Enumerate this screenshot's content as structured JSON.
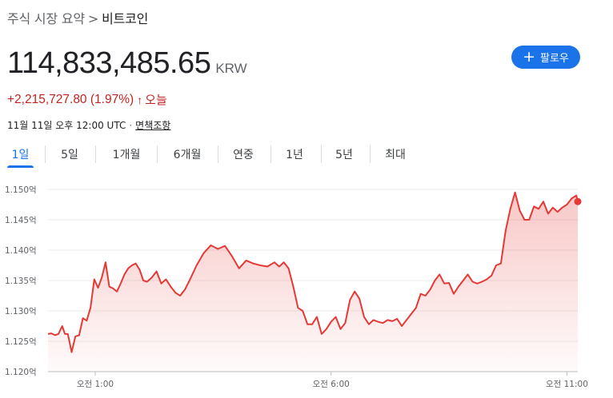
{
  "breadcrumb": {
    "parent": "주식 시장 요약",
    "separator": ">",
    "current": "비트코인"
  },
  "quote": {
    "price": "114,833,485.65",
    "currency": "KRW",
    "change": "+2,215,727.80 (1.97%)",
    "change_arrow": "↑",
    "period": "오늘",
    "timestamp": "11월 11일 오후 12:00 UTC",
    "separator_dot": "·",
    "disclaimer": "면책조항"
  },
  "follow_button": {
    "icon": "plus-icon",
    "label": "팔로우",
    "color": "#1a73e8"
  },
  "tabs": [
    {
      "label": "1일",
      "active": true
    },
    {
      "label": "5일",
      "active": false
    },
    {
      "label": "1개월",
      "active": false
    },
    {
      "label": "6개월",
      "active": false
    },
    {
      "label": "연중",
      "active": false
    },
    {
      "label": "1년",
      "active": false
    },
    {
      "label": "5년",
      "active": false
    },
    {
      "label": "최대",
      "active": false
    }
  ],
  "chart_data": {
    "type": "area",
    "line_color": "#e53935",
    "y_unit": "억 KRW",
    "ylim": [
      1.12,
      1.15
    ],
    "y_ticks": [
      {
        "value": 1.15,
        "label": "1.150억"
      },
      {
        "value": 1.145,
        "label": "1.145억"
      },
      {
        "value": 1.14,
        "label": "1.140억"
      },
      {
        "value": 1.135,
        "label": "1.135억"
      },
      {
        "value": 1.13,
        "label": "1.130억"
      },
      {
        "value": 1.125,
        "label": "1.125억"
      },
      {
        "value": 1.12,
        "label": "1.120억"
      }
    ],
    "xlim": [
      0.0,
      11.23
    ],
    "x_unit": "hours after 12:00 AM UTC",
    "x_ticks": [
      {
        "value": 1.0,
        "label": "오전 1:00"
      },
      {
        "value": 6.0,
        "label": "오전 6:00"
      },
      {
        "value": 11.0,
        "label": "오전 11:00"
      }
    ],
    "grid": true,
    "series": [
      {
        "x": [
          0.0,
          0.07,
          0.15,
          0.22,
          0.3,
          0.36,
          0.42,
          0.5,
          0.58,
          0.66,
          0.74,
          0.82,
          0.9,
          0.98,
          1.06,
          1.14,
          1.22,
          1.3,
          1.38,
          1.46,
          1.54,
          1.62,
          1.7,
          1.78,
          1.86,
          1.94,
          2.02,
          2.1,
          2.2,
          2.3,
          2.4,
          2.5,
          2.6,
          2.7,
          2.8,
          2.9,
          3.0,
          3.15,
          3.3,
          3.45,
          3.6,
          3.75,
          3.9,
          4.05,
          4.2,
          4.35,
          4.5,
          4.65,
          4.8,
          4.9,
          5.0,
          5.1,
          5.2,
          5.3,
          5.4,
          5.5,
          5.6,
          5.7,
          5.8,
          5.9,
          6.0,
          6.1,
          6.2,
          6.3,
          6.4,
          6.5,
          6.6,
          6.7,
          6.8,
          6.9,
          7.0,
          7.1,
          7.2,
          7.3,
          7.4,
          7.5,
          7.6,
          7.7,
          7.8,
          7.9,
          8.0,
          8.1,
          8.2,
          8.3,
          8.4,
          8.5,
          8.6,
          8.7,
          8.8,
          8.9,
          9.0,
          9.1,
          9.2,
          9.3,
          9.4,
          9.5,
          9.6,
          9.7,
          9.8,
          9.9,
          10.0,
          10.1,
          10.2,
          10.3,
          10.4,
          10.5,
          10.6,
          10.7,
          10.8,
          10.9,
          11.0,
          11.1,
          11.2,
          11.23
        ],
        "values": [
          1.1262,
          1.1263,
          1.126,
          1.1262,
          1.1275,
          1.1262,
          1.1262,
          1.1232,
          1.1258,
          1.126,
          1.1288,
          1.1284,
          1.1305,
          1.1352,
          1.1338,
          1.1355,
          1.138,
          1.134,
          1.1337,
          1.1332,
          1.1345,
          1.136,
          1.137,
          1.1375,
          1.1378,
          1.1368,
          1.135,
          1.1348,
          1.1355,
          1.1365,
          1.1345,
          1.1352,
          1.134,
          1.133,
          1.1325,
          1.1335,
          1.135,
          1.1375,
          1.1395,
          1.1408,
          1.1402,
          1.1407,
          1.139,
          1.137,
          1.1383,
          1.1378,
          1.1375,
          1.1373,
          1.138,
          1.1373,
          1.138,
          1.137,
          1.134,
          1.1305,
          1.13,
          1.1278,
          1.1278,
          1.129,
          1.1262,
          1.127,
          1.1282,
          1.129,
          1.127,
          1.128,
          1.1318,
          1.1332,
          1.132,
          1.129,
          1.1278,
          1.1285,
          1.1282,
          1.128,
          1.1285,
          1.1283,
          1.1287,
          1.1275,
          1.1285,
          1.1295,
          1.1305,
          1.1328,
          1.1325,
          1.1335,
          1.135,
          1.136,
          1.1345,
          1.1346,
          1.1328,
          1.134,
          1.135,
          1.136,
          1.1348,
          1.1345,
          1.1348,
          1.1352,
          1.1358,
          1.1375,
          1.1378,
          1.137,
          1.1372,
          1.139,
          1.1405,
          1.1395,
          1.1412,
          1.142,
          1.1428,
          1.1452,
          1.1475,
          1.1495,
          1.146,
          1.145,
          1.145,
          1.1462,
          1.1467,
          1.148
        ],
        "x2": [
          9.7,
          9.8,
          9.9,
          10.0,
          10.1,
          10.2,
          10.3,
          10.4,
          10.5,
          10.6,
          10.7,
          10.8,
          10.9,
          11.0,
          11.1,
          11.2,
          11.23
        ],
        "values2": [
          1.1432,
          1.1468,
          1.1495,
          1.1465,
          1.145,
          1.145,
          1.1472,
          1.1468,
          1.148,
          1.146,
          1.147,
          1.1463,
          1.147,
          1.1475,
          1.1485,
          1.149,
          1.148
        ]
      }
    ]
  }
}
